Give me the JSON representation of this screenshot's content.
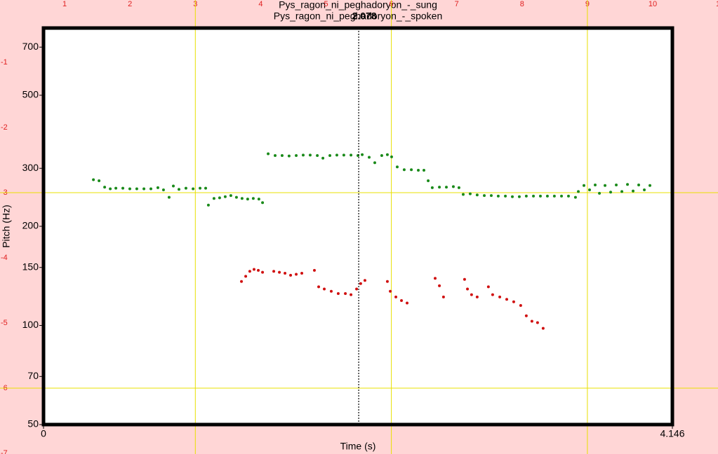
{
  "chart_data": {
    "type": "scatter",
    "xlabel": "Time (s)",
    "ylabel": "Pitch (Hz)",
    "xlim": [
      0,
      4.146
    ],
    "xticks": [
      0,
      4.146
    ],
    "ylim": [
      50,
      800
    ],
    "yticks": [
      50,
      70,
      100,
      150,
      200,
      300,
      500,
      700
    ],
    "ylog": true,
    "cursor": 2.078,
    "ruler_top": [
      "1",
      "2",
      "3",
      "4",
      "5",
      "6",
      "7",
      "8",
      "9",
      "10",
      "1"
    ],
    "ruler_left": [
      "-1",
      "-2",
      "-3",
      "-4",
      "-5",
      "-6",
      "-7"
    ],
    "series": [
      {
        "name": "Pys_ragon_ni_peghadoryon_-_sung",
        "color": "#1a8a1a",
        "x": [
          0.329,
          0.366,
          0.403,
          0.44,
          0.477,
          0.523,
          0.569,
          0.615,
          0.662,
          0.708,
          0.754,
          0.791,
          0.828,
          0.856,
          0.893,
          0.939,
          0.986,
          1.032,
          1.069,
          1.087,
          1.124,
          1.161,
          1.198,
          1.235,
          1.272,
          1.309,
          1.346,
          1.383,
          1.42,
          1.444,
          1.481,
          1.527,
          1.573,
          1.619,
          1.666,
          1.712,
          1.758,
          1.805,
          1.842,
          1.888,
          1.934,
          1.98,
          2.027,
          2.073,
          2.101,
          2.147,
          2.184,
          2.23,
          2.267,
          2.295,
          2.332,
          2.378,
          2.425,
          2.471,
          2.508,
          2.536,
          2.563,
          2.61,
          2.656,
          2.702,
          2.739,
          2.767,
          2.813,
          2.859,
          2.906,
          2.952,
          2.998,
          3.045,
          3.091,
          3.137,
          3.183,
          3.23,
          3.276,
          3.322,
          3.368,
          3.415,
          3.461,
          3.507,
          3.526,
          3.563,
          3.6,
          3.637,
          3.665,
          3.702,
          3.739,
          3.776,
          3.813,
          3.85,
          3.887,
          3.924,
          3.961,
          3.998
        ],
        "values": [
          277,
          275,
          263,
          260,
          261,
          261,
          260,
          260,
          260,
          260,
          262,
          258,
          245,
          265,
          259,
          261,
          260,
          261,
          261,
          232,
          243,
          244,
          246,
          248,
          245,
          243,
          242,
          243,
          242,
          236,
          332,
          328,
          328,
          327,
          328,
          329,
          329,
          328,
          322,
          328,
          329,
          329,
          329,
          328,
          330,
          324,
          312,
          328,
          330,
          325,
          303,
          297,
          297,
          296,
          296,
          275,
          262,
          263,
          263,
          264,
          262,
          250,
          251,
          249,
          248,
          248,
          247,
          247,
          246,
          246,
          247,
          247,
          247,
          247,
          247,
          247,
          247,
          245,
          255,
          266,
          258,
          267,
          252,
          266,
          254,
          267,
          255,
          268,
          256,
          267,
          258,
          266
        ]
      },
      {
        "name": "Pys_ragon_ni_peghadoryon_-_spoken",
        "color": "#d01010",
        "x": [
          1.305,
          1.333,
          1.36,
          1.388,
          1.416,
          1.444,
          1.518,
          1.555,
          1.592,
          1.629,
          1.666,
          1.703,
          1.786,
          1.814,
          1.851,
          1.897,
          1.943,
          1.99,
          2.027,
          2.064,
          2.091,
          2.119,
          2.267,
          2.286,
          2.323,
          2.36,
          2.397,
          2.582,
          2.61,
          2.637,
          2.776,
          2.795,
          2.822,
          2.859,
          2.933,
          2.961,
          3.008,
          3.054,
          3.1,
          3.146,
          3.183,
          3.22,
          3.257,
          3.294
        ],
        "values": [
          136,
          141,
          146,
          148,
          147,
          145,
          146,
          145,
          144,
          142,
          143,
          144,
          147,
          131,
          129,
          127,
          125,
          125,
          124,
          129,
          134,
          137,
          136,
          127,
          122,
          119,
          117,
          139,
          132,
          122,
          138,
          129,
          124,
          122,
          131,
          124,
          122,
          120,
          118,
          115,
          107,
          103,
          102,
          98
        ]
      }
    ]
  }
}
